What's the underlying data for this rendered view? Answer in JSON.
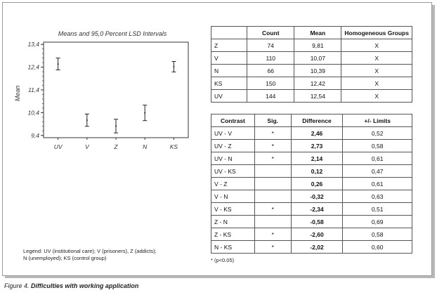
{
  "chart_data": {
    "type": "scatter",
    "title": "Means and 95,0 Percent LSD Intervals",
    "ylabel": "Mean",
    "xlabel": "",
    "categories": [
      "UV",
      "V",
      "Z",
      "N",
      "KS"
    ],
    "means": [
      12.54,
      10.07,
      9.81,
      10.39,
      12.42
    ],
    "lower": [
      12.28,
      9.8,
      9.51,
      10.05,
      12.19
    ],
    "upper": [
      12.8,
      10.34,
      10.11,
      10.73,
      12.65
    ],
    "yticks": [
      "13,4",
      "12,4",
      "11,4",
      "10,4",
      "9,4"
    ],
    "ytick_values": [
      13.4,
      12.4,
      11.4,
      10.4,
      9.4
    ],
    "ylim": [
      9.3,
      13.5
    ],
    "grid": false
  },
  "groups_table": {
    "headers": [
      "",
      "Count",
      "Mean",
      "Homogeneous Groups"
    ],
    "rows": [
      [
        "Z",
        "74",
        "9,81",
        "X"
      ],
      [
        "V",
        "110",
        "10,07",
        "X"
      ],
      [
        "N",
        "66",
        "10,39",
        "X"
      ],
      [
        "KS",
        "150",
        "12,42",
        "X"
      ],
      [
        "UV",
        "144",
        "12,54",
        "X"
      ]
    ]
  },
  "contrast_table": {
    "headers": [
      "Contrast",
      "Sig.",
      "Difference",
      "+/- Limits"
    ],
    "rows": [
      [
        "UV - V",
        "*",
        "2,46",
        "0,52"
      ],
      [
        "UV - Z",
        "*",
        "2,73",
        "0,58"
      ],
      [
        "UV - N",
        "*",
        "2,14",
        "0,61"
      ],
      [
        "UV - KS",
        "",
        "0,12",
        "0,47"
      ],
      [
        "V - Z",
        "",
        "0,26",
        "0,61"
      ],
      [
        "V - N",
        "",
        "-0,32",
        "0,63"
      ],
      [
        "V - KS",
        "*",
        "-2,34",
        "0,51"
      ],
      [
        "Z - N",
        "",
        "-0,58",
        "0,69"
      ],
      [
        "Z - KS",
        "*",
        "-2,60",
        "0,58"
      ],
      [
        "N - KS",
        "*",
        "-2,02",
        "0,60"
      ]
    ]
  },
  "legend": {
    "line1": "Legend: UV (institutional care); V (prisoners), Z (addicts);",
    "line2": "N (unemployed); KS (control group)"
  },
  "footnote": "* (p<0.05)",
  "caption": {
    "prefix": "Figure 4.",
    "text": "Difficulties with working application"
  }
}
